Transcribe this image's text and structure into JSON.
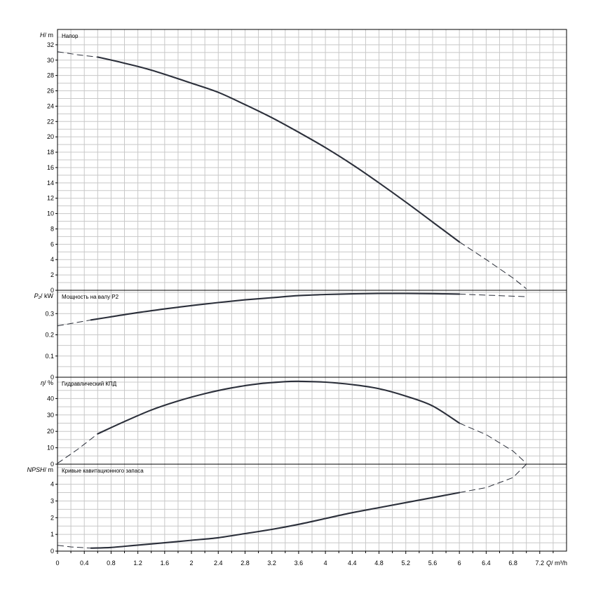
{
  "chart_data": {
    "type": "line",
    "x_axis": {
      "label_quantity": "Q",
      "label_unit": "/ m³/h",
      "ticks": [
        "0",
        "0.4",
        "0.8",
        "1.2",
        "1.6",
        "2",
        "2.4",
        "2.8",
        "3.2",
        "3.6",
        "4",
        "4.4",
        "4.8",
        "5.2",
        "5.6",
        "6",
        "6.4",
        "6.8",
        "7.2"
      ],
      "xlim": [
        0,
        7.6
      ],
      "grid": true
    },
    "panels": [
      {
        "id": "head",
        "title": "Напор",
        "y_quantity": "H",
        "y_unit": "/ m",
        "ylim": [
          0,
          34
        ],
        "ticks": [
          "0",
          "2",
          "4",
          "6",
          "8",
          "10",
          "12",
          "14",
          "16",
          "18",
          "20",
          "22",
          "24",
          "26",
          "28",
          "30",
          "32"
        ],
        "tick_values": [
          0,
          2,
          4,
          6,
          8,
          10,
          12,
          14,
          16,
          18,
          20,
          22,
          24,
          26,
          28,
          30,
          32
        ],
        "grid_step": 1,
        "solid": [
          [
            0.6,
            30.4
          ],
          [
            1.0,
            29.6
          ],
          [
            1.4,
            28.7
          ],
          [
            2.0,
            27.0
          ],
          [
            2.4,
            25.8
          ],
          [
            2.8,
            24.2
          ],
          [
            3.2,
            22.5
          ],
          [
            3.6,
            20.6
          ],
          [
            4.0,
            18.6
          ],
          [
            4.4,
            16.4
          ],
          [
            4.8,
            14.0
          ],
          [
            5.2,
            11.5
          ],
          [
            5.6,
            8.9
          ],
          [
            6.0,
            6.3
          ]
        ],
        "dashed_segments": [
          [
            [
              0.0,
              31.1
            ],
            [
              0.3,
              30.7
            ],
            [
              0.6,
              30.4
            ]
          ],
          [
            [
              6.0,
              6.3
            ],
            [
              6.4,
              4.0
            ],
            [
              6.8,
              1.6
            ],
            [
              7.0,
              0.2
            ]
          ]
        ]
      },
      {
        "id": "power",
        "title": "Мощность на валу P2",
        "y_quantity": "P₂",
        "y_unit": "/ kW",
        "ylim": [
          0,
          0.41
        ],
        "ticks": [
          "0",
          "0.1",
          "0.2",
          "0.3"
        ],
        "tick_values": [
          0,
          0.1,
          0.2,
          0.3
        ],
        "grid_step": 0.05,
        "solid": [
          [
            0.5,
            0.27
          ],
          [
            0.8,
            0.285
          ],
          [
            1.2,
            0.305
          ],
          [
            1.6,
            0.322
          ],
          [
            2.0,
            0.338
          ],
          [
            2.4,
            0.352
          ],
          [
            2.8,
            0.365
          ],
          [
            3.2,
            0.375
          ],
          [
            3.6,
            0.385
          ],
          [
            4.0,
            0.39
          ],
          [
            4.4,
            0.393
          ],
          [
            4.8,
            0.395
          ],
          [
            5.2,
            0.395
          ],
          [
            5.6,
            0.394
          ],
          [
            6.0,
            0.392
          ]
        ],
        "dashed_segments": [
          [
            [
              0.0,
              0.242
            ],
            [
              0.5,
              0.27
            ]
          ],
          [
            [
              6.0,
              0.392
            ],
            [
              6.5,
              0.386
            ],
            [
              7.0,
              0.38
            ]
          ]
        ]
      },
      {
        "id": "efficiency",
        "title": "Гидравлический КПД",
        "y_quantity": "η",
        "y_unit": "/ %",
        "ylim": [
          0,
          53
        ],
        "ticks": [
          "0",
          "10",
          "20",
          "30",
          "40"
        ],
        "tick_values": [
          0,
          10,
          20,
          30,
          40
        ],
        "grid_step": 5,
        "solid": [
          [
            0.6,
            18.5
          ],
          [
            1.0,
            26.0
          ],
          [
            1.4,
            33.0
          ],
          [
            1.8,
            38.5
          ],
          [
            2.2,
            43.0
          ],
          [
            2.6,
            46.5
          ],
          [
            3.0,
            49.0
          ],
          [
            3.4,
            50.3
          ],
          [
            3.6,
            50.5
          ],
          [
            4.0,
            50.0
          ],
          [
            4.4,
            48.5
          ],
          [
            4.8,
            46.0
          ],
          [
            5.2,
            41.5
          ],
          [
            5.6,
            35.5
          ],
          [
            6.0,
            25.0
          ]
        ],
        "dashed_segments": [
          [
            [
              0.0,
              0.5
            ],
            [
              0.3,
              9.0
            ],
            [
              0.6,
              18.5
            ]
          ],
          [
            [
              6.0,
              25.0
            ],
            [
              6.4,
              18.0
            ],
            [
              6.8,
              8.0
            ],
            [
              7.0,
              0.5
            ]
          ]
        ]
      },
      {
        "id": "npsh",
        "title": "Кривые кавитационного запаса",
        "y_quantity": "NPSH",
        "y_unit": "/ m",
        "ylim": [
          0,
          5.2
        ],
        "ticks": [
          "0",
          "1",
          "2",
          "3",
          "4"
        ],
        "tick_values": [
          0,
          1,
          2,
          3,
          4
        ],
        "grid_step": 0.5,
        "solid": [
          [
            0.5,
            0.18
          ],
          [
            0.8,
            0.22
          ],
          [
            1.2,
            0.36
          ],
          [
            1.6,
            0.5
          ],
          [
            2.0,
            0.65
          ],
          [
            2.4,
            0.8
          ],
          [
            2.8,
            1.05
          ],
          [
            3.2,
            1.3
          ],
          [
            3.6,
            1.6
          ],
          [
            4.0,
            1.95
          ],
          [
            4.4,
            2.3
          ],
          [
            4.8,
            2.6
          ],
          [
            5.2,
            2.9
          ],
          [
            5.6,
            3.2
          ],
          [
            6.0,
            3.5
          ]
        ],
        "dashed_segments": [
          [
            [
              0.0,
              0.35
            ],
            [
              0.2,
              0.25
            ],
            [
              0.5,
              0.18
            ]
          ],
          [
            [
              6.0,
              3.5
            ],
            [
              6.4,
              3.8
            ],
            [
              6.8,
              4.4
            ],
            [
              7.0,
              5.2
            ]
          ]
        ]
      }
    ]
  }
}
